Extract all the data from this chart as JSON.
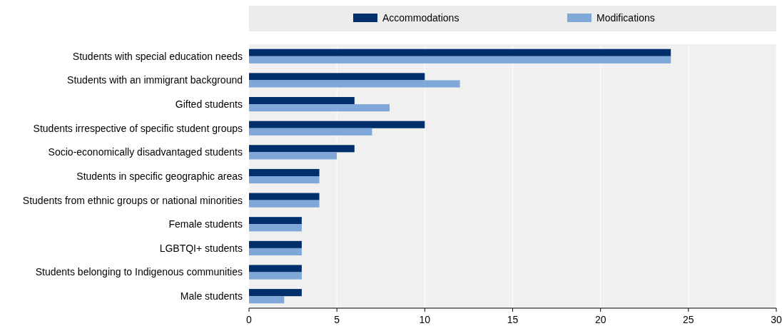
{
  "chart_data": {
    "type": "bar",
    "orientation": "horizontal",
    "categories": [
      "Students with special education needs",
      "Students with an immigrant background",
      "Gifted students",
      "Students irrespective of specific student groups",
      "Socio-economically disadvantaged students",
      "Students in specific geographic areas",
      "Students from ethnic groups or national minorities",
      "Female students",
      "LGBTQI+ students",
      "Students belonging to Indigenous communities",
      "Male students"
    ],
    "series": [
      {
        "name": "Accommodations",
        "color": "#002f6c",
        "values": [
          24,
          10,
          6,
          10,
          6,
          4,
          4,
          3,
          3,
          3,
          3
        ]
      },
      {
        "name": "Modifications",
        "color": "#7fa8d9",
        "values": [
          24,
          12,
          8,
          7,
          5,
          4,
          4,
          3,
          3,
          3,
          2
        ]
      }
    ],
    "xlim": [
      0,
      30
    ],
    "xticks": [
      0,
      5,
      10,
      15,
      20,
      25,
      30
    ],
    "grid": "x",
    "legend": "top"
  }
}
